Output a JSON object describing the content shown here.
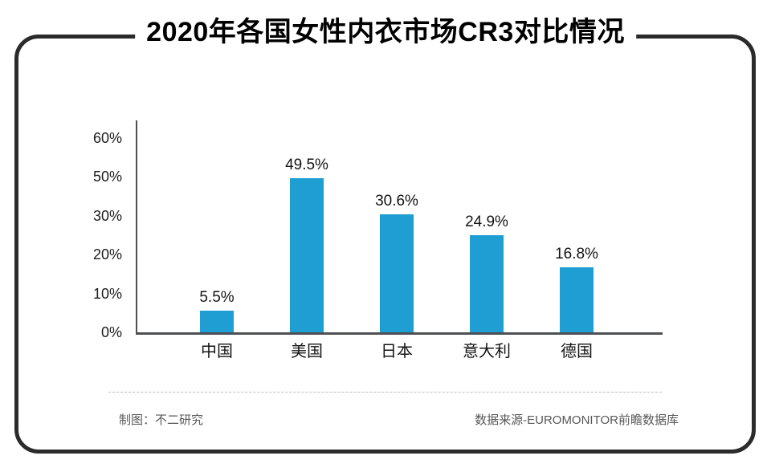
{
  "title": "2020年各国女性内衣市场CR3对比情况",
  "chart_data": {
    "type": "bar",
    "title": "2020年各国女性内衣市场CR3对比情况",
    "categories": [
      "中国",
      "美国",
      "日本",
      "意大利",
      "德国"
    ],
    "values": [
      5.5,
      49.5,
      30.6,
      24.9,
      16.8
    ],
    "value_labels": [
      "5.5%",
      "49.5%",
      "30.6%",
      "24.9%",
      "16.8%"
    ],
    "y_ticks": [
      {
        "label": "60%",
        "value": 60
      },
      {
        "label": "50%",
        "value": 50
      },
      {
        "label": "30%",
        "value": 30
      },
      {
        "label": "20%",
        "value": 20
      },
      {
        "label": "10%",
        "value": 10
      },
      {
        "label": "0%",
        "value": 0
      }
    ],
    "xlabel": "",
    "ylabel": "",
    "grid": false,
    "legend": false,
    "bar_color": "#1F9ED3",
    "axis_color": "#4d4f53",
    "label_color": "#141414"
  },
  "footer": {
    "credit": "制图：不二研究",
    "source": "数据来源-EUROMONITOR前瞻数据库"
  }
}
